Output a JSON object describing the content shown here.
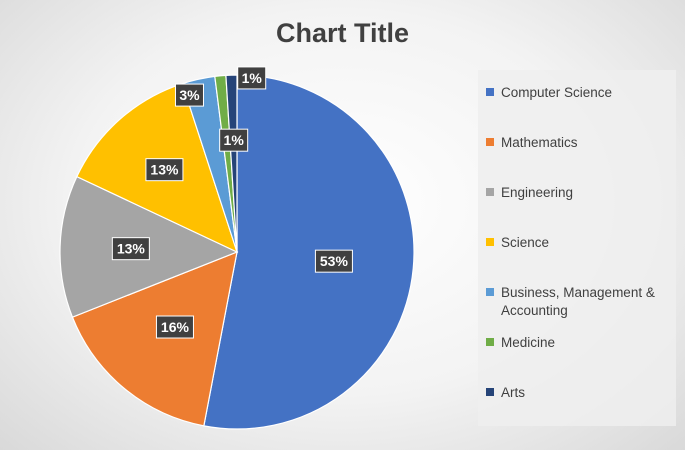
{
  "chart_data": {
    "type": "pie",
    "title": "Chart Title",
    "categories": [
      "Computer Science",
      "Mathematics",
      "Engineering",
      "Science",
      "Business, Management & Accounting",
      "Medicine",
      "Arts"
    ],
    "values": [
      53,
      16,
      13,
      13,
      3,
      1,
      1
    ],
    "data_labels": [
      "53%",
      "16%",
      "13%",
      "13%",
      "3%",
      "1%",
      "1%"
    ],
    "colors": [
      "#4472C4",
      "#ED7D31",
      "#A5A5A5",
      "#FFC000",
      "#5B9BD5",
      "#70AD47",
      "#264478"
    ],
    "legend_position": "right"
  }
}
